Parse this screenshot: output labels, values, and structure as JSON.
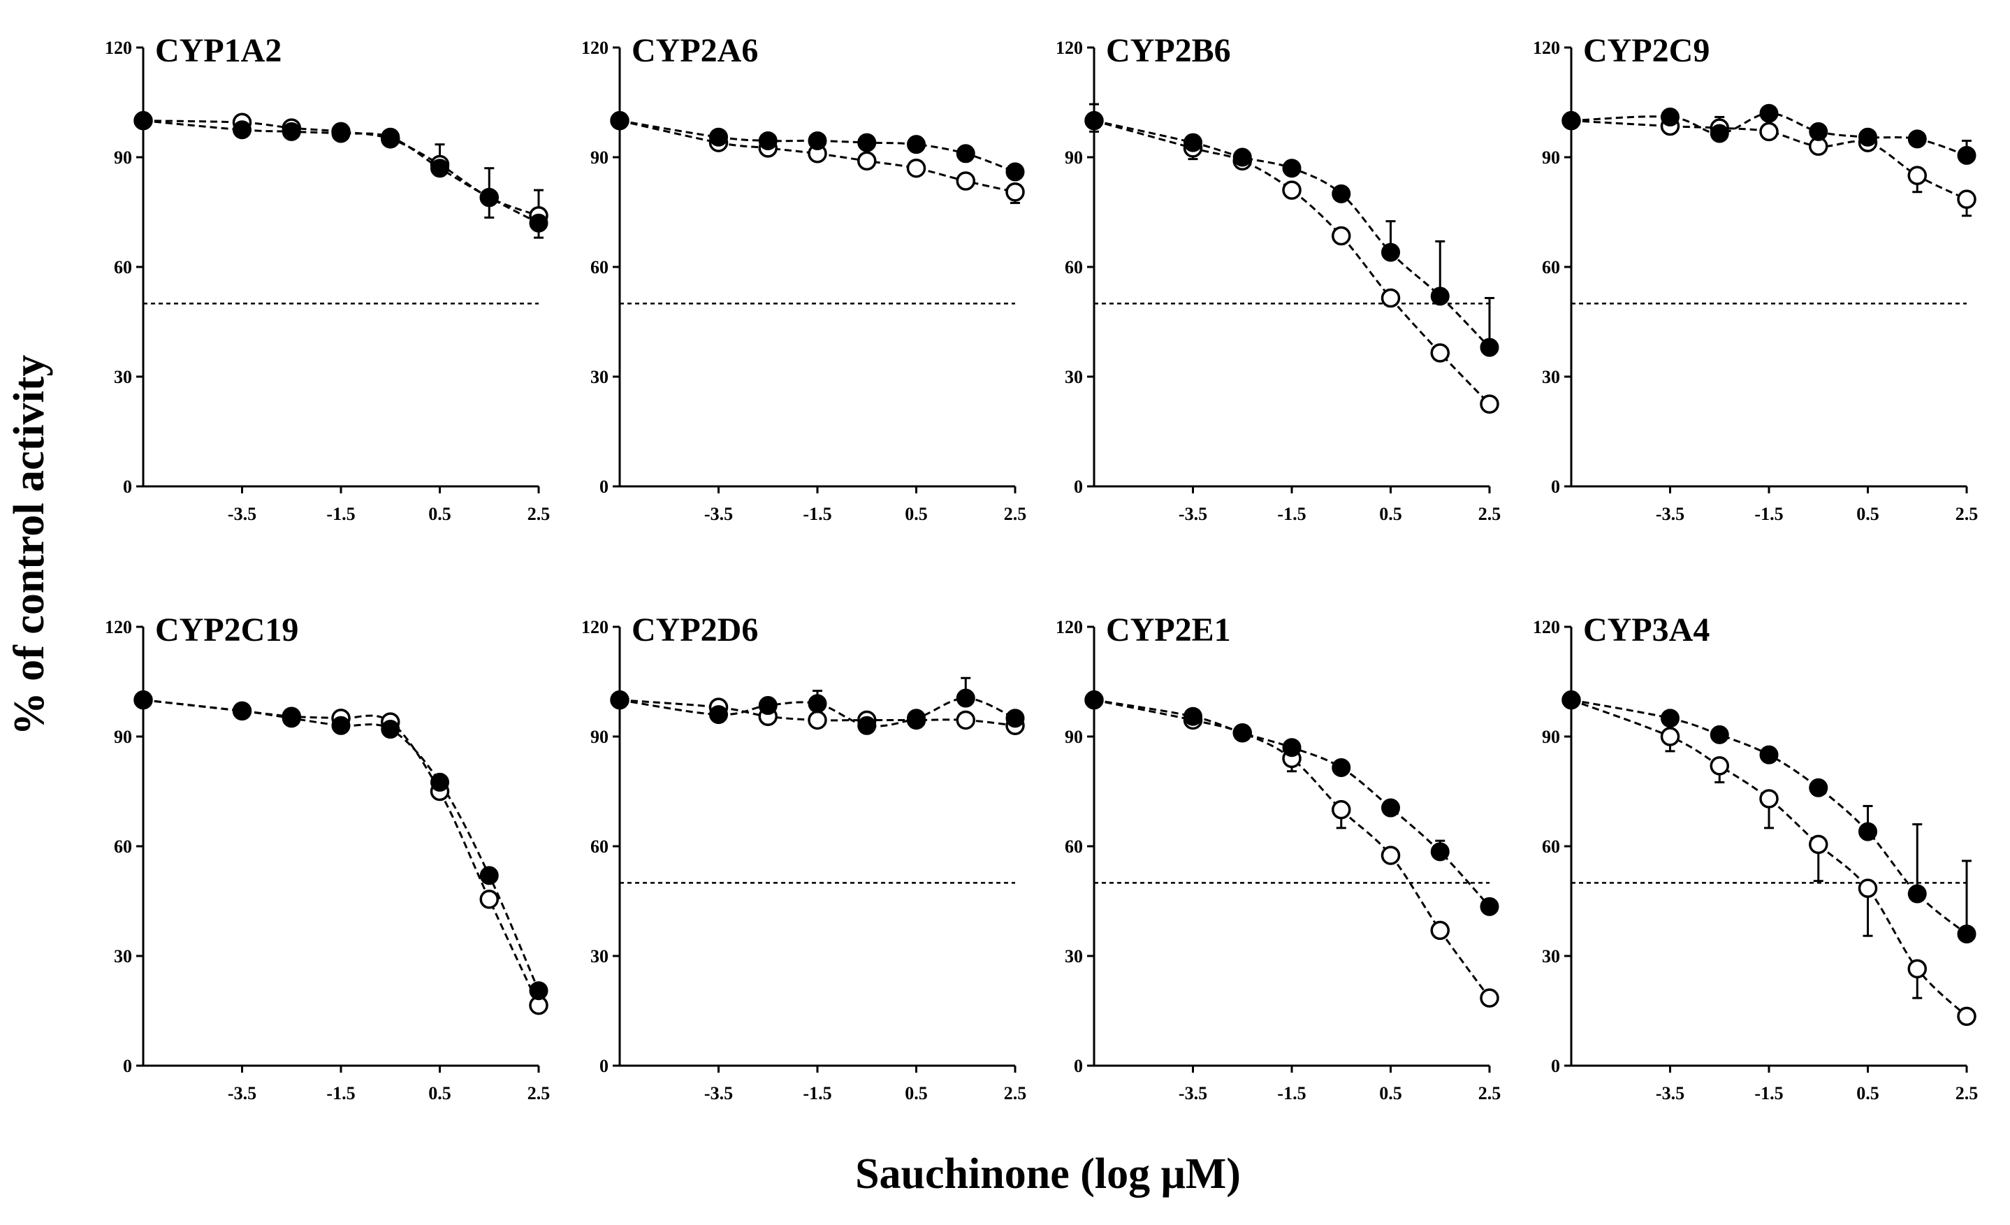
{
  "figure": {
    "ylabel": "% of control activity",
    "xlabel": "Sauchinone (log μM)"
  },
  "chart_data": [
    {
      "type": "scatter",
      "title": "CYP1A2",
      "x": [
        -5.5,
        -3.5,
        -2.5,
        -1.5,
        -0.5,
        0.5,
        1.5,
        2.5
      ],
      "xticks": [
        "-3.5",
        "-1.5",
        "0.5",
        "2.5"
      ],
      "yticks": [
        "0",
        "30",
        "60",
        "90",
        "120"
      ],
      "ylim": [
        0,
        120
      ],
      "reference_line": 50,
      "series": [
        {
          "marker": "filled",
          "values": [
            100,
            97.5,
            97,
            96.5,
            95.5,
            87,
            79,
            72
          ],
          "errors": [
            0,
            1,
            1,
            1,
            1.5,
            6.5,
            8,
            9
          ]
        },
        {
          "marker": "open",
          "values": [
            100,
            99.5,
            98,
            97,
            95,
            88,
            79,
            74
          ],
          "errors": [
            0,
            0.5,
            1,
            1,
            1,
            3,
            5.5,
            6
          ]
        }
      ]
    },
    {
      "type": "scatter",
      "title": "CYP2A6",
      "x": [
        -5.5,
        -3.5,
        -2.5,
        -1.5,
        -0.5,
        0.5,
        1.5,
        2.5
      ],
      "xticks": [
        "-3.5",
        "-1.5",
        "0.5",
        "2.5"
      ],
      "yticks": [
        "0",
        "30",
        "60",
        "90",
        "120"
      ],
      "ylim": [
        0,
        120
      ],
      "reference_line": 50,
      "series": [
        {
          "marker": "filled",
          "values": [
            100,
            95.5,
            94.5,
            94.5,
            94,
            93.5,
            91,
            86
          ],
          "errors": [
            0,
            1,
            1,
            1,
            1,
            1,
            1,
            1
          ]
        },
        {
          "marker": "open",
          "values": [
            100,
            94,
            92.5,
            91,
            89,
            87,
            83.5,
            80.5
          ],
          "errors": [
            0,
            1,
            1,
            1,
            1,
            1,
            1,
            3
          ]
        }
      ]
    },
    {
      "type": "scatter",
      "title": "CYP2B6",
      "x": [
        -5.5,
        -3.5,
        -2.5,
        -1.5,
        -0.5,
        0.5,
        1.5,
        2.5
      ],
      "xticks": [
        "-3.5",
        "-1.5",
        "0.5",
        "2.5"
      ],
      "yticks": [
        "0",
        "30",
        "60",
        "90",
        "120"
      ],
      "ylim": [
        0,
        120
      ],
      "reference_line": 50,
      "series": [
        {
          "marker": "filled",
          "values": [
            100,
            94,
            90,
            87,
            80,
            64,
            52,
            38
          ],
          "errors": [
            4.5,
            2,
            1.5,
            1,
            1,
            8.5,
            15,
            13.5
          ]
        },
        {
          "marker": "open",
          "values": [
            100,
            92.5,
            89,
            81,
            68.5,
            51.5,
            36.5,
            22.5
          ],
          "errors": [
            3,
            3,
            1,
            1,
            1,
            1.5,
            1.5,
            1
          ]
        }
      ]
    },
    {
      "type": "scatter",
      "title": "CYP2C9",
      "x": [
        -5.5,
        -3.5,
        -2.5,
        -1.5,
        -0.5,
        0.5,
        1.5,
        2.5
      ],
      "xticks": [
        "-3.5",
        "-1.5",
        "0.5",
        "2.5"
      ],
      "yticks": [
        "0",
        "30",
        "60",
        "90",
        "120"
      ],
      "ylim": [
        0,
        120
      ],
      "reference_line": 50,
      "series": [
        {
          "marker": "filled",
          "values": [
            100,
            101,
            96.5,
            102,
            97,
            95.5,
            95,
            90.5
          ],
          "errors": [
            0,
            1,
            4.5,
            1,
            1,
            1,
            1,
            4
          ]
        },
        {
          "marker": "open",
          "values": [
            100,
            98.5,
            98,
            97,
            93,
            94,
            85,
            78.5
          ],
          "errors": [
            0,
            1,
            1,
            1,
            1,
            1,
            4.5,
            4.5
          ]
        }
      ]
    },
    {
      "type": "scatter",
      "title": "CYP2C19",
      "x": [
        -5.5,
        -3.5,
        -2.5,
        -1.5,
        -0.5,
        0.5,
        1.5,
        2.5
      ],
      "xticks": [
        "-3.5",
        "-1.5",
        "0.5",
        "2.5"
      ],
      "yticks": [
        "0",
        "30",
        "60",
        "90",
        "120"
      ],
      "ylim": [
        0,
        120
      ],
      "reference_line": null,
      "series": [
        {
          "marker": "filled",
          "values": [
            100,
            97,
            95,
            93,
            92,
            77.5,
            52,
            20.5
          ],
          "errors": [
            0,
            1,
            1,
            1,
            1,
            1,
            1,
            1
          ]
        },
        {
          "marker": "open",
          "values": [
            100,
            97,
            95.5,
            95,
            94,
            75,
            45.5,
            16.5
          ],
          "errors": [
            0,
            1,
            1,
            1,
            1,
            1,
            1,
            1
          ]
        }
      ]
    },
    {
      "type": "scatter",
      "title": "CYP2D6",
      "x": [
        -5.5,
        -3.5,
        -2.5,
        -1.5,
        -0.5,
        0.5,
        1.5,
        2.5
      ],
      "xticks": [
        "-3.5",
        "-1.5",
        "0.5",
        "2.5"
      ],
      "yticks": [
        "0",
        "30",
        "60",
        "90",
        "120"
      ],
      "ylim": [
        0,
        120
      ],
      "reference_line": 50,
      "series": [
        {
          "marker": "filled",
          "values": [
            100,
            96,
            98.5,
            99,
            93,
            95,
            100.5,
            95
          ],
          "errors": [
            0,
            4,
            2,
            3.5,
            1,
            1.5,
            5.5,
            1
          ]
        },
        {
          "marker": "open",
          "values": [
            100,
            98,
            95.5,
            94.5,
            94.5,
            94.5,
            94.5,
            93
          ],
          "errors": [
            0,
            1,
            1,
            1,
            1,
            1,
            1,
            1
          ]
        }
      ]
    },
    {
      "type": "scatter",
      "title": "CYP2E1",
      "x": [
        -5.5,
        -3.5,
        -2.5,
        -1.5,
        -0.5,
        0.5,
        1.5,
        2.5
      ],
      "xticks": [
        "-3.5",
        "-1.5",
        "0.5",
        "2.5"
      ],
      "yticks": [
        "0",
        "30",
        "60",
        "90",
        "120"
      ],
      "ylim": [
        0,
        120
      ],
      "reference_line": 50,
      "series": [
        {
          "marker": "filled",
          "values": [
            100,
            95.5,
            91,
            87,
            81.5,
            70.5,
            58.5,
            43.5
          ],
          "errors": [
            0,
            1,
            1,
            1,
            1,
            1,
            3,
            2
          ]
        },
        {
          "marker": "open",
          "values": [
            100,
            94.5,
            91,
            84,
            70,
            57.5,
            37,
            18.5
          ],
          "errors": [
            0,
            1,
            1,
            3.5,
            5,
            1,
            1,
            1
          ]
        }
      ]
    },
    {
      "type": "scatter",
      "title": "CYP3A4",
      "x": [
        -5.5,
        -3.5,
        -2.5,
        -1.5,
        -0.5,
        0.5,
        1.5,
        2.5
      ],
      "xticks": [
        "-3.5",
        "-1.5",
        "0.5",
        "2.5"
      ],
      "yticks": [
        "0",
        "30",
        "60",
        "90",
        "120"
      ],
      "ylim": [
        0,
        120
      ],
      "reference_line": 50,
      "series": [
        {
          "marker": "filled",
          "values": [
            100,
            95,
            90.5,
            85,
            76,
            64,
            47,
            36
          ],
          "errors": [
            0,
            1,
            1,
            1,
            1,
            7,
            19,
            20
          ]
        },
        {
          "marker": "open",
          "values": [
            100,
            90,
            82,
            73,
            60.5,
            48.5,
            26.5,
            13.5
          ],
          "errors": [
            0,
            4,
            4.5,
            8,
            10,
            13,
            8,
            2
          ]
        }
      ]
    }
  ]
}
